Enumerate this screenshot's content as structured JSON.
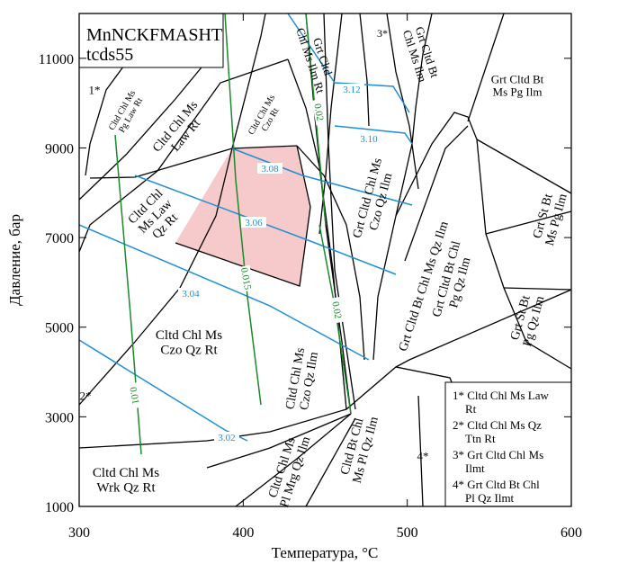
{
  "chart_data": {
    "type": "phase-diagram",
    "title": "MnNCKFMASHT",
    "subtitle": "tcds55",
    "x_label": "Температура, °C",
    "y_label": "Давление, бар",
    "xlim": [
      300,
      600
    ],
    "ylim": [
      1000,
      12000
    ],
    "xticks": [
      300,
      400,
      500,
      600
    ],
    "yticks": [
      1000,
      3000,
      5000,
      7000,
      9000,
      11000
    ],
    "fields": [
      {
        "lines": [
          "1*"
        ]
      },
      {
        "lines": [
          "Cltd Chl Ms",
          "Pg Law Rt"
        ]
      },
      {
        "lines": [
          "Cltd Chl Ms",
          "Law Rt"
        ]
      },
      {
        "lines": [
          "Cltd Chl Ms",
          "Czo Rt"
        ]
      },
      {
        "lines": [
          "Grt Cltd",
          "Chl Ms Ilm Rt"
        ]
      },
      {
        "lines": [
          "3*"
        ]
      },
      {
        "lines": [
          "Grt Cltd Bt",
          "Chl Ms Ilm"
        ]
      },
      {
        "lines": [
          "Grt Cltd Bt",
          "Ms Pg Ilm"
        ]
      },
      {
        "lines": [
          "Cltd Chl",
          "Ms Law",
          "Qz Rt"
        ]
      },
      {
        "lines": [
          "Grt Cltd Chl Ms",
          "Czo Qz Ilm"
        ]
      },
      {
        "lines": [
          "Grt Cltd Bt Chl Ms Qz Ilm"
        ]
      },
      {
        "lines": [
          "Grt Cltd Bt Chl",
          "Pg Qz Ilm"
        ]
      },
      {
        "lines": [
          "Grt St Bt",
          "Ms Pg Ilm"
        ]
      },
      {
        "lines": [
          "Grt St Bt",
          "Pg Qz Ilm"
        ]
      },
      {
        "lines": [
          "Cltd Chl Ms",
          "Czo Qz Rt"
        ]
      },
      {
        "lines": [
          "Cltd Chl Ms",
          "Czo Qz Ilm"
        ]
      },
      {
        "lines": [
          "2*"
        ]
      },
      {
        "lines": [
          "Cltd Chl Ms",
          "Pl Mrg Qz Ilm"
        ]
      },
      {
        "lines": [
          "Cltd Bt Chl",
          "Ms Pl Qz Ilm"
        ]
      },
      {
        "lines": [
          "4*"
        ]
      },
      {
        "lines": [
          "Cltd Chl Ms",
          "Wrk Qz Rt"
        ]
      }
    ],
    "contours": [
      {
        "value": 3.12,
        "label": "3.12",
        "color": "#1e8fd6"
      },
      {
        "value": 3.1,
        "label": "3.10",
        "color": "#1e8fd6"
      },
      {
        "value": 3.08,
        "label": "3.08",
        "color": "#1e8fd6"
      },
      {
        "value": 3.06,
        "label": "3.06",
        "color": "#1e8fd6"
      },
      {
        "value": 3.04,
        "label": "3.04",
        "color": "#1e8fd6"
      },
      {
        "value": 3.02,
        "label": "3.02",
        "color": "#1e8fd6"
      },
      {
        "value": 0.02,
        "label": "0.02",
        "color": "#1a8a2a"
      },
      {
        "value": 0.015,
        "label": "0.015",
        "color": "#1a8a2a"
      },
      {
        "value": 0.02,
        "label": "0.02",
        "color": "#1a8a2a"
      },
      {
        "value": 0.01,
        "label": "0.01",
        "color": "#1a8a2a"
      }
    ],
    "legend": [
      [
        "1* Cltd Chl Ms Law",
        "Rt"
      ],
      [
        "2* Cltd Chl Ms Qz",
        "Ttn Rt"
      ],
      [
        "3* Grt Cltd Chl Ms",
        "Ilmt"
      ],
      [
        "4* Grt Cltd Bt Chl",
        "Pl Qz Ilmt"
      ]
    ]
  }
}
